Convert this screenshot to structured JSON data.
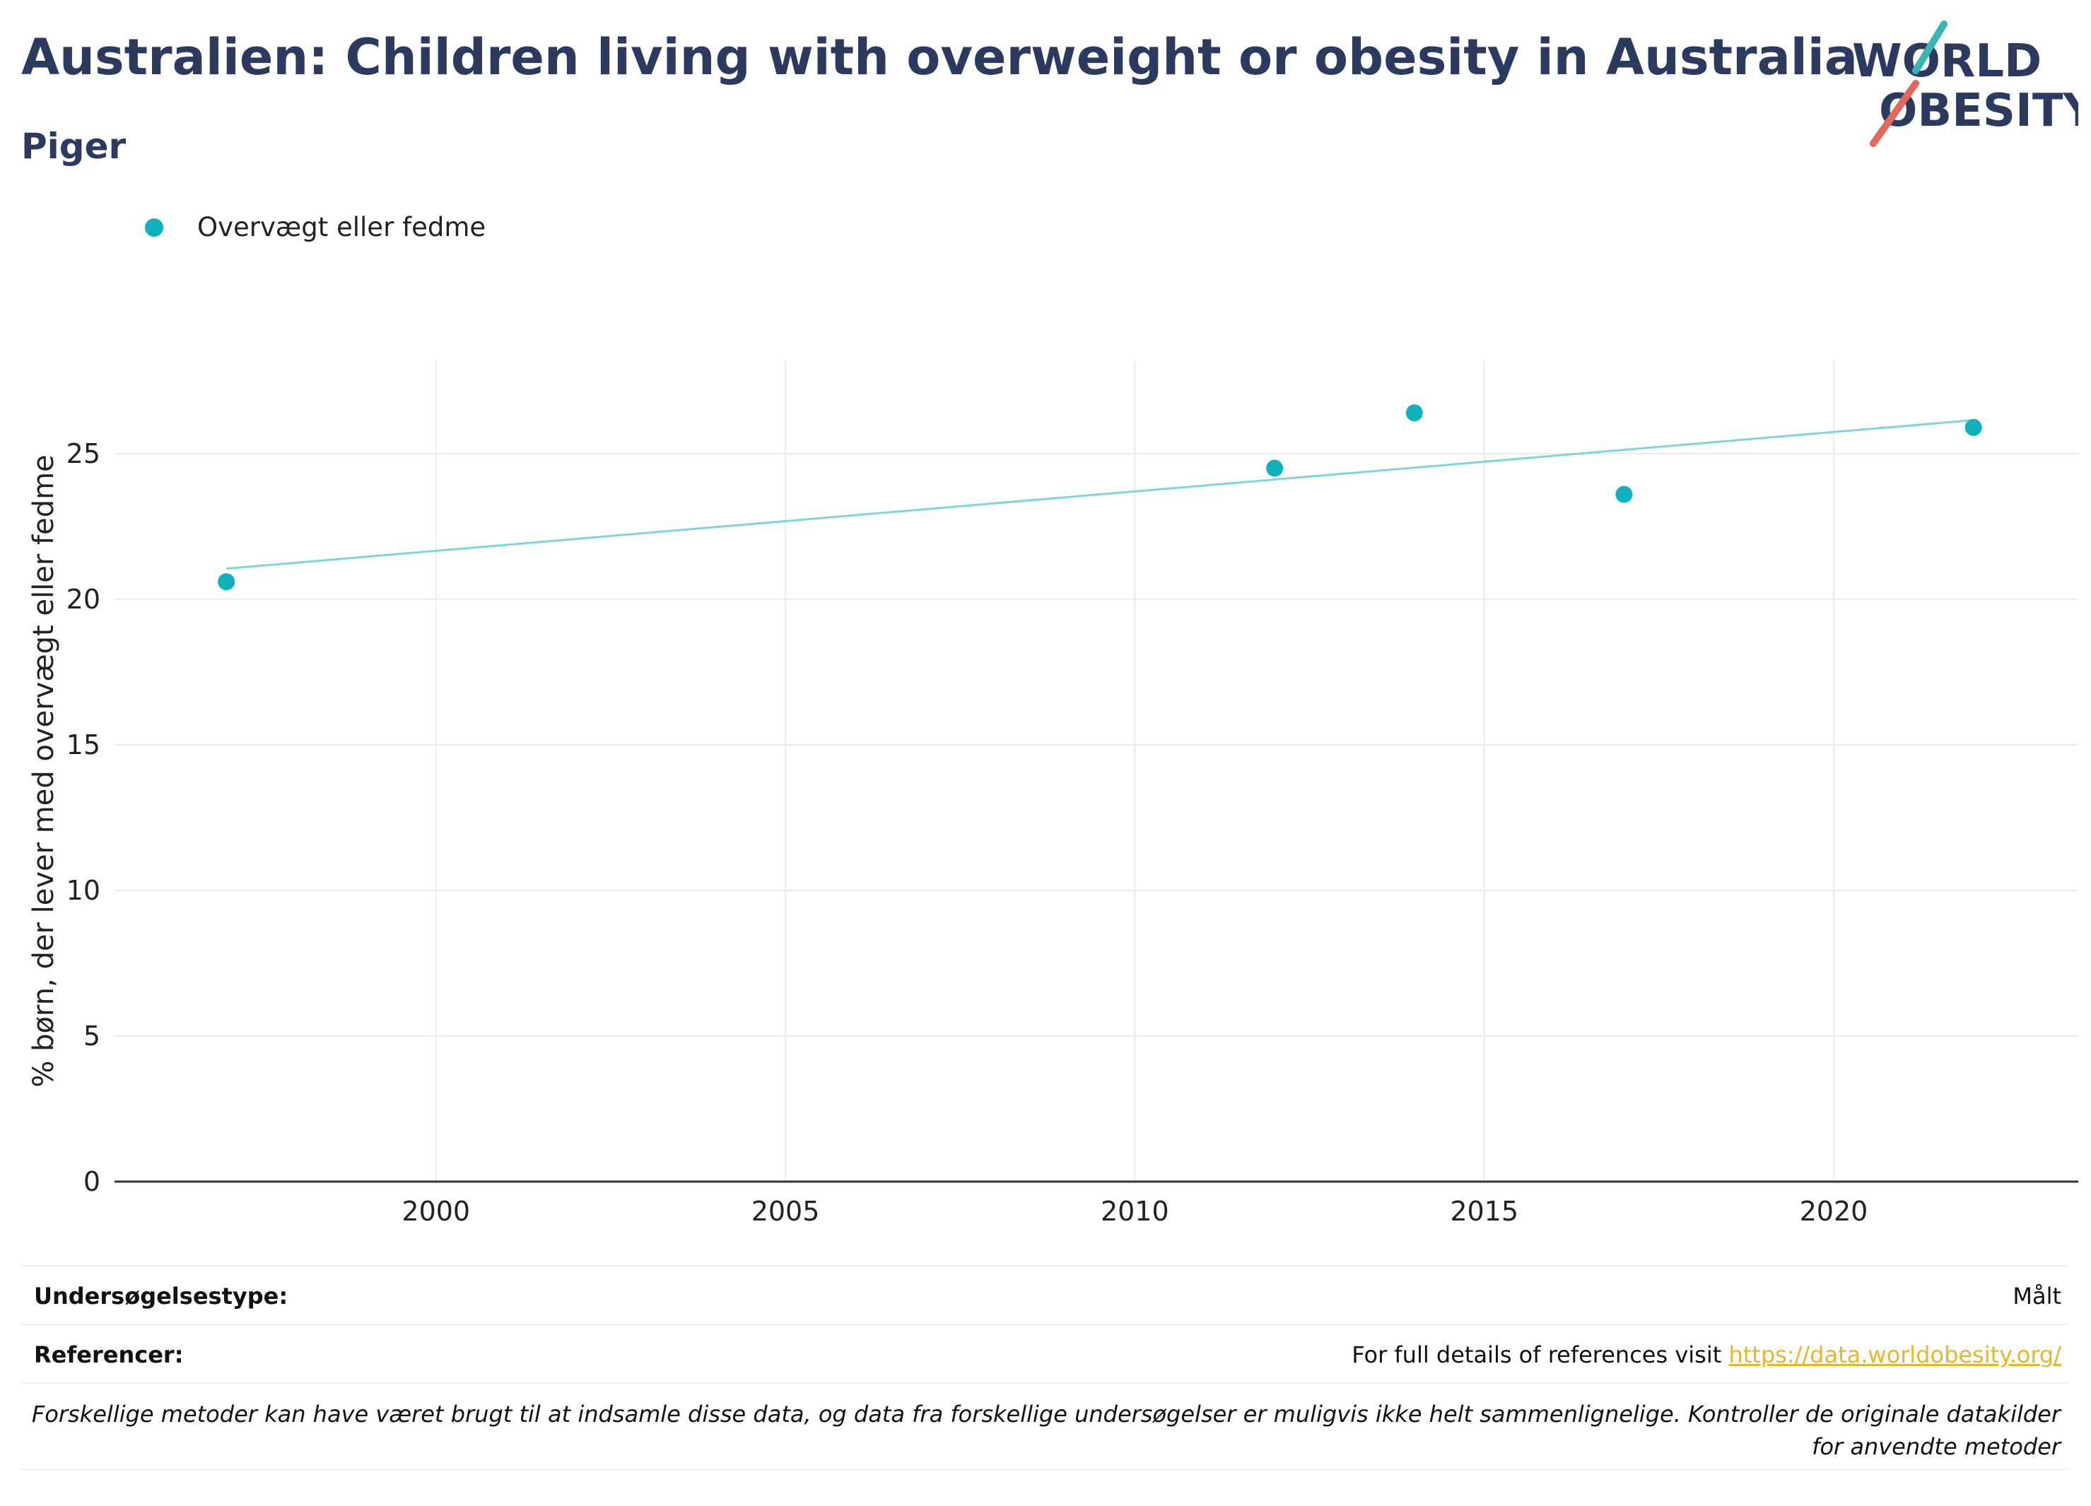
{
  "header": {
    "title": "Australien: Children living with overweight or obesity in Australia",
    "subtitle": "Piger"
  },
  "logo": {
    "line1": "WORLD",
    "line2": "OBESITY",
    "accent_teal": "#35b6b4",
    "accent_red": "#e5675b"
  },
  "legend": {
    "label": "Overvægt eller fedme",
    "color": "#0fb1bd",
    "placement": "top-left"
  },
  "chart_data": {
    "type": "scatter",
    "title": "",
    "xlabel": "",
    "ylabel": "% børn, der lever med overvægt eller fedme",
    "xlim": [
      1995.4,
      2023.5
    ],
    "ylim": [
      0,
      28.2
    ],
    "x_ticks": [
      2000,
      2005,
      2010,
      2015,
      2020
    ],
    "y_ticks": [
      0,
      5,
      10,
      15,
      20,
      25
    ],
    "grid": true,
    "series": [
      {
        "name": "Overvægt eller fedme",
        "color": "#0fb1bd",
        "x": [
          1997,
          2012,
          2014,
          2017,
          2022
        ],
        "y": [
          20.6,
          24.5,
          26.4,
          23.6,
          25.9
        ]
      }
    ],
    "trendline": {
      "color": "#7fd6d9",
      "x": [
        1997,
        2022
      ],
      "y": [
        21.05,
        26.15
      ]
    }
  },
  "info": {
    "survey_label": "Undersøgelsestype:",
    "survey_value": "Målt",
    "references_label": "Referencer:",
    "references_text": "For full details of references visit ",
    "references_link": "https://data.worldobesity.org/",
    "note": "Forskellige metoder kan have været brugt til at indsamle disse data, og data fra forskellige undersøgelser er muligvis ikke helt sammenlignelige. Kontroller de originale datakilder for anvendte metoder"
  }
}
